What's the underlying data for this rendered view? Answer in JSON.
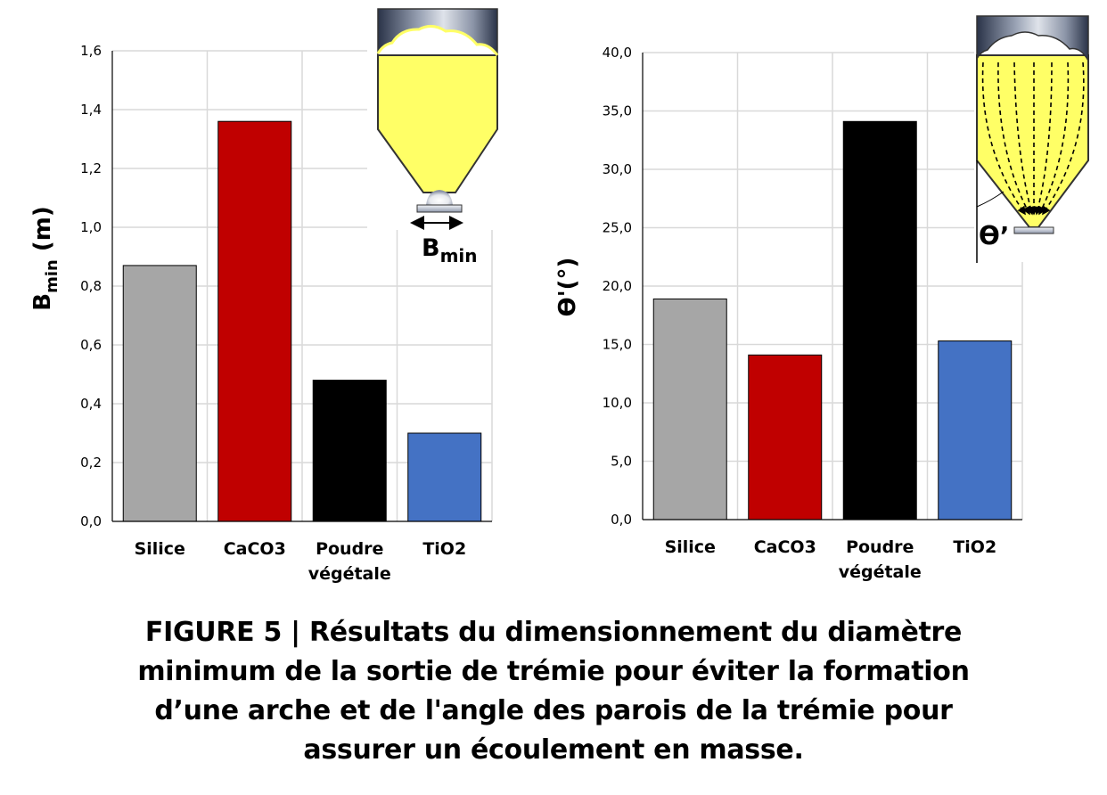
{
  "chart_data": [
    {
      "type": "bar",
      "categories": [
        "Silice",
        "CaCO3",
        "Poudre végétale",
        "TiO2"
      ],
      "category_lines": [
        [
          "Silice"
        ],
        [
          "CaCO3"
        ],
        [
          "Poudre",
          "végétale"
        ],
        [
          "TiO2"
        ]
      ],
      "values": [
        0.87,
        1.36,
        0.48,
        0.3
      ],
      "colors": [
        "#a6a6a6",
        "#c00000",
        "#000000",
        "#4472c4"
      ],
      "ylabel_main": "B",
      "ylabel_sub": "min",
      "ylabel_rest": " (m)",
      "ylim": [
        0,
        1.6
      ],
      "yticks": [
        "0,0",
        "0,2",
        "0,4",
        "0,6",
        "0,8",
        "1,0",
        "1,2",
        "1,4",
        "1,6"
      ],
      "grid": true,
      "inset_label_main": "B",
      "inset_label_sub": "min"
    },
    {
      "type": "bar",
      "categories": [
        "Silice",
        "CaCO3",
        "Poudre végétale",
        "TiO2"
      ],
      "category_lines": [
        [
          "Silice"
        ],
        [
          "CaCO3"
        ],
        [
          "Poudre",
          "végétale"
        ],
        [
          "TiO2"
        ]
      ],
      "values": [
        18.9,
        14.1,
        34.1,
        15.3
      ],
      "colors": [
        "#a6a6a6",
        "#c00000",
        "#000000",
        "#4472c4"
      ],
      "ylabel": "ϴ'(°)",
      "ylim": [
        0,
        40
      ],
      "yticks": [
        "0,0",
        "5,0",
        "10,0",
        "15,0",
        "20,0",
        "25,0",
        "30,0",
        "35,0",
        "40,0"
      ],
      "grid": true,
      "inset_label": "ϴ’"
    }
  ],
  "caption": {
    "lines": [
      "FIGURE 5 | Résultats du dimensionnement du diamètre",
      "minimum de la sortie de trémie pour éviter la formation",
      "d’une arche et de l'angle des parois de la trémie pour",
      "assurer un écoulement en masse."
    ]
  }
}
